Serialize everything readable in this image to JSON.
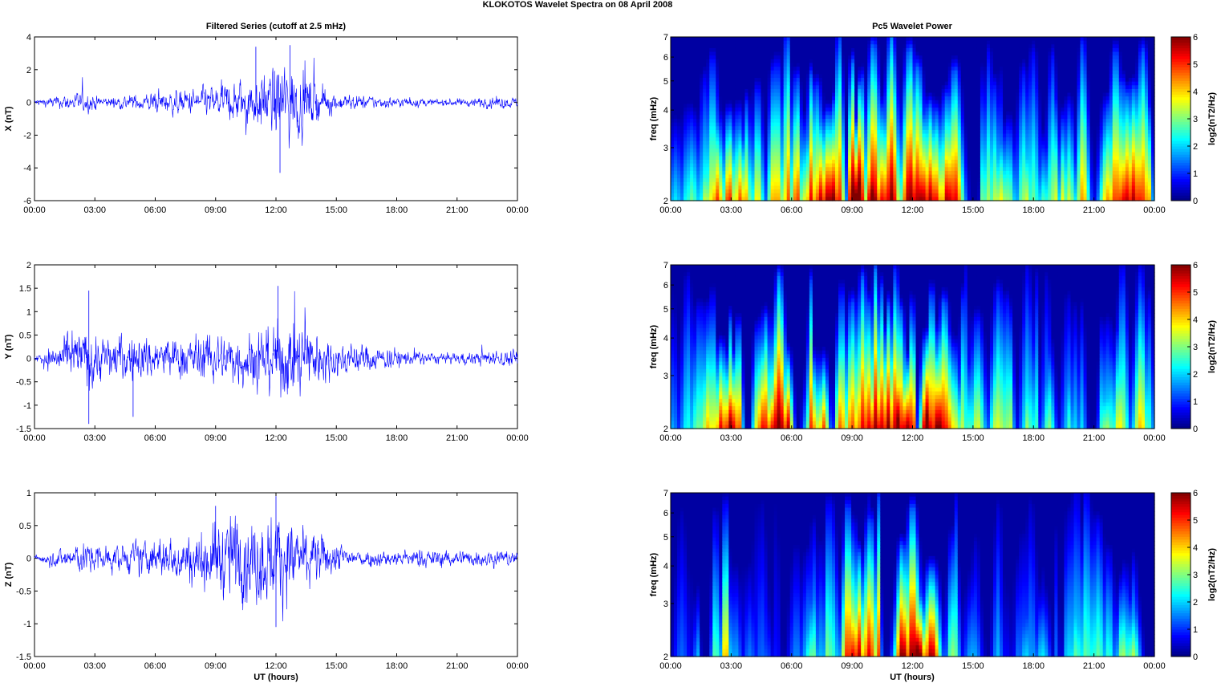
{
  "title": "KLOKOTOS Wavelet Spectra on 08 April     2008",
  "left_title": "Filtered Series (cutoff at 2.5 mHz)",
  "right_title": "Pc5 Wavelet Power",
  "xlabel": "UT (hours)",
  "colorbar_label": "log2(nT2/Hz)",
  "colorbar_ticks": [
    "0",
    "1",
    "2",
    "3",
    "4",
    "5",
    "6"
  ],
  "freq_label": "freq (mHz)",
  "time_ticks": [
    "00:00",
    "03:00",
    "06:00",
    "09:00",
    "12:00",
    "15:00",
    "18:00",
    "21:00",
    "00:00"
  ],
  "colors": {
    "trace": "#0000ff",
    "background_power": "#00008f"
  },
  "chart_data": [
    {
      "type": "line",
      "title": "Filtered Series (cutoff at 2.5 mHz)",
      "ylabel": "X (nT)",
      "ylim": [
        -6,
        4
      ],
      "yticks": [
        "4",
        "2",
        "0",
        "-2",
        "-4",
        "-6"
      ],
      "xlim_hours": [
        0,
        24
      ],
      "envelope": [
        {
          "t": 0,
          "amp": 0.15
        },
        {
          "t": 2.5,
          "amp": 0.5
        },
        {
          "t": 3.5,
          "amp": 0.25
        },
        {
          "t": 7.5,
          "amp": 0.6
        },
        {
          "t": 9.5,
          "amp": 0.9
        },
        {
          "t": 11.5,
          "amp": 1.4
        },
        {
          "t": 12.3,
          "amp": 2.2
        },
        {
          "t": 13.5,
          "amp": 1.3
        },
        {
          "t": 15,
          "amp": 0.4
        },
        {
          "t": 20,
          "amp": 0.15
        },
        {
          "t": 23.5,
          "amp": 0.3
        },
        {
          "t": 24,
          "amp": 0.2
        }
      ],
      "extremes": [
        {
          "t": 12.2,
          "value": -4.3
        },
        {
          "t": 12.7,
          "value": 3.5
        },
        {
          "t": 11.0,
          "value": 3.4
        }
      ]
    },
    {
      "type": "line",
      "ylabel": "Y (nT)",
      "ylim": [
        -1.5,
        2
      ],
      "yticks": [
        "2",
        "1.5",
        "1",
        "0.5",
        "0",
        "-0.5",
        "-1",
        "-1.5"
      ],
      "xlim_hours": [
        0,
        24
      ],
      "envelope": [
        {
          "t": 0,
          "amp": 0.06
        },
        {
          "t": 2.7,
          "amp": 0.55
        },
        {
          "t": 3.5,
          "amp": 0.35
        },
        {
          "t": 5,
          "amp": 0.4
        },
        {
          "t": 7,
          "amp": 0.35
        },
        {
          "t": 10,
          "amp": 0.45
        },
        {
          "t": 13,
          "amp": 0.7
        },
        {
          "t": 15,
          "amp": 0.3
        },
        {
          "t": 20,
          "amp": 0.08
        },
        {
          "t": 24,
          "amp": 0.15
        }
      ],
      "extremes": [
        {
          "t": 2.7,
          "value": -1.4
        },
        {
          "t": 2.7,
          "value": 1.45
        },
        {
          "t": 4.9,
          "value": -1.25
        },
        {
          "t": 12.1,
          "value": 1.55
        }
      ]
    },
    {
      "type": "line",
      "ylabel": "Z (nT)",
      "ylim": [
        -1.5,
        1
      ],
      "yticks": [
        "1",
        "0.5",
        "0",
        "-0.5",
        "-1",
        "-1.5"
      ],
      "xlim_hours": [
        0,
        24
      ],
      "envelope": [
        {
          "t": 0,
          "amp": 0.04
        },
        {
          "t": 2.5,
          "amp": 0.2
        },
        {
          "t": 4,
          "amp": 0.15
        },
        {
          "t": 8,
          "amp": 0.3
        },
        {
          "t": 9.5,
          "amp": 0.5
        },
        {
          "t": 12,
          "amp": 0.55
        },
        {
          "t": 14,
          "amp": 0.3
        },
        {
          "t": 16,
          "amp": 0.1
        },
        {
          "t": 23.5,
          "amp": 0.1
        },
        {
          "t": 24,
          "amp": 0.08
        }
      ],
      "extremes": [
        {
          "t": 12.0,
          "value": -1.05
        },
        {
          "t": 12.0,
          "value": 0.95
        },
        {
          "t": 9.0,
          "value": 0.8
        }
      ]
    },
    {
      "type": "heatmap",
      "title": "Pc5 Wavelet Power",
      "ylabel": "freq (mHz)",
      "yticks": [
        "7",
        "6",
        "5",
        "4",
        "3",
        "2"
      ],
      "ylim_mhz": [
        2,
        7
      ],
      "yscale": "log",
      "clim": [
        0,
        6
      ],
      "colormap": "jet",
      "activity": [
        {
          "t": 0,
          "level": 1.5
        },
        {
          "t": 1.5,
          "level": 2.5
        },
        {
          "t": 3,
          "level": 5.5
        },
        {
          "t": 4,
          "level": 3
        },
        {
          "t": 7,
          "level": 4.5
        },
        {
          "t": 9,
          "level": 6
        },
        {
          "t": 12,
          "level": 6
        },
        {
          "t": 14,
          "level": 5.5
        },
        {
          "t": 15,
          "level": 3
        },
        {
          "t": 19,
          "level": 3
        },
        {
          "t": 21,
          "level": 4.5
        },
        {
          "t": 23,
          "level": 5
        },
        {
          "t": 24,
          "level": 3
        }
      ]
    },
    {
      "type": "heatmap",
      "ylabel": "freq (mHz)",
      "yticks": [
        "7",
        "6",
        "5",
        "4",
        "3",
        "2"
      ],
      "ylim_mhz": [
        2,
        7
      ],
      "yscale": "log",
      "clim": [
        0,
        6
      ],
      "colormap": "jet",
      "activity": [
        {
          "t": 0,
          "level": 1
        },
        {
          "t": 1.5,
          "level": 2.5
        },
        {
          "t": 3,
          "level": 5.5
        },
        {
          "t": 4,
          "level": 3.5
        },
        {
          "t": 5,
          "level": 5.5
        },
        {
          "t": 8,
          "level": 4.5
        },
        {
          "t": 10,
          "level": 5.5
        },
        {
          "t": 13,
          "level": 6
        },
        {
          "t": 14.5,
          "level": 3
        },
        {
          "t": 18,
          "level": 2.5
        },
        {
          "t": 21,
          "level": 2
        },
        {
          "t": 23,
          "level": 4
        },
        {
          "t": 24,
          "level": 2
        }
      ]
    },
    {
      "type": "heatmap",
      "ylabel": "freq (mHz)",
      "yticks": [
        "7",
        "6",
        "5",
        "4",
        "3",
        "2"
      ],
      "ylim_mhz": [
        2,
        7
      ],
      "yscale": "log",
      "clim": [
        0,
        6
      ],
      "colormap": "jet",
      "activity": [
        {
          "t": 0,
          "level": 0
        },
        {
          "t": 1.5,
          "level": 1.5
        },
        {
          "t": 2.7,
          "level": 4.5
        },
        {
          "t": 3.5,
          "level": 1
        },
        {
          "t": 6,
          "level": 1.5
        },
        {
          "t": 8,
          "level": 3
        },
        {
          "t": 9,
          "level": 5
        },
        {
          "t": 12,
          "level": 6
        },
        {
          "t": 13.5,
          "level": 5
        },
        {
          "t": 14.5,
          "level": 1
        },
        {
          "t": 17,
          "level": 1
        },
        {
          "t": 20,
          "level": 2
        },
        {
          "t": 23,
          "level": 3
        },
        {
          "t": 24,
          "level": 0
        }
      ]
    }
  ]
}
